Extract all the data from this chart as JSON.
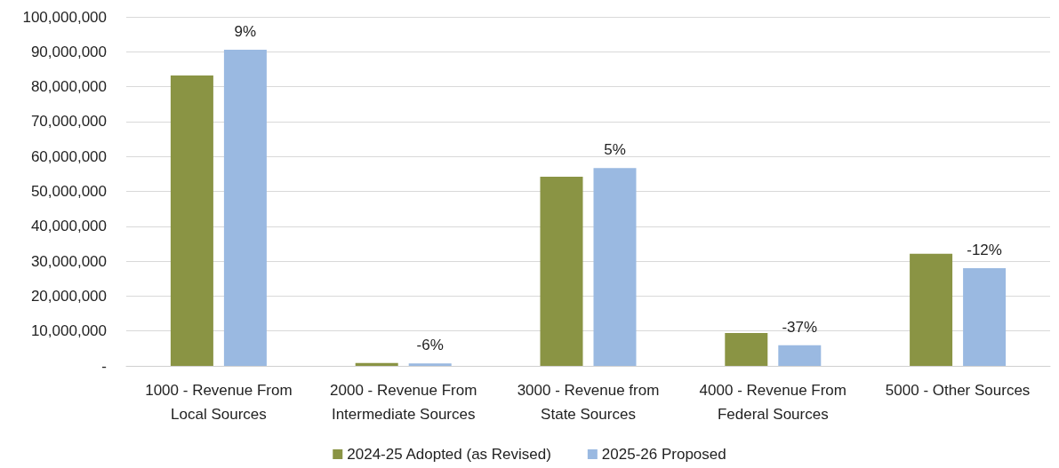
{
  "chart_data": {
    "type": "bar",
    "categories": [
      "1000 - Revenue From\nLocal Sources",
      "2000 - Revenue From\nIntermediate Sources",
      "3000 - Revenue from\nState Sources",
      "4000 - Revenue From\nFederal Sources",
      "5000 - Other Sources"
    ],
    "series": [
      {
        "name": "2024-25 Adopted (as Revised)",
        "color": "#8a9444",
        "values": [
          83200000,
          800000,
          54200000,
          9400000,
          32100000
        ]
      },
      {
        "name": "2025-26 Proposed",
        "color": "#9ab9e1",
        "values": [
          90600000,
          700000,
          56700000,
          5900000,
          28000000
        ]
      }
    ],
    "annotations": [
      "9%",
      "-6%",
      "5%",
      "-37%",
      "-12%"
    ],
    "ylim": [
      0,
      100000000
    ],
    "yticks": [
      {
        "value": 0,
        "label": "-"
      },
      {
        "value": 10000000,
        "label": "10,000,000"
      },
      {
        "value": 20000000,
        "label": "20,000,000"
      },
      {
        "value": 30000000,
        "label": "30,000,000"
      },
      {
        "value": 40000000,
        "label": "40,000,000"
      },
      {
        "value": 50000000,
        "label": "50,000,000"
      },
      {
        "value": 60000000,
        "label": "60,000,000"
      },
      {
        "value": 70000000,
        "label": "70,000,000"
      },
      {
        "value": 80000000,
        "label": "80,000,000"
      },
      {
        "value": 90000000,
        "label": "90,000,000"
      },
      {
        "value": 100000000,
        "label": "100,000,000"
      }
    ],
    "grid": "y",
    "legend": "bottom"
  }
}
